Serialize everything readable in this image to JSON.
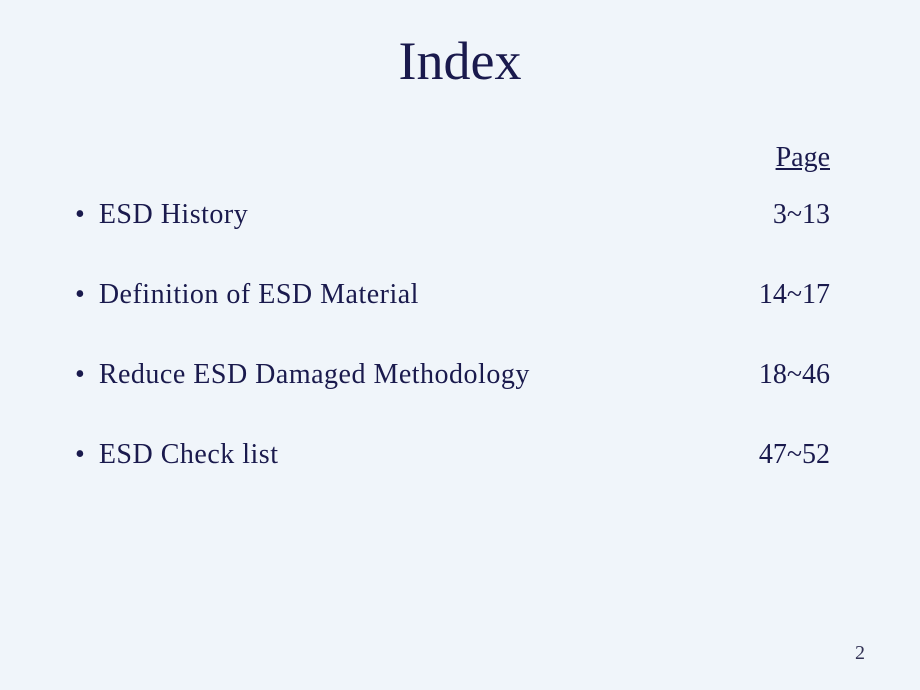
{
  "title": "Index",
  "page_header": "Page",
  "items": [
    {
      "label": "ESD History",
      "pages": "3~13"
    },
    {
      "label": "Definition  of  ESD  Material",
      "pages": "14~17"
    },
    {
      "label": "Reduce  ESD  Damaged  Methodology",
      "pages": "18~46"
    },
    {
      "label": "ESD  Check  list",
      "pages": "47~52"
    }
  ],
  "page_number": "2",
  "colors": {
    "background": "#f0f5fa",
    "text": "#1a1a4d"
  }
}
